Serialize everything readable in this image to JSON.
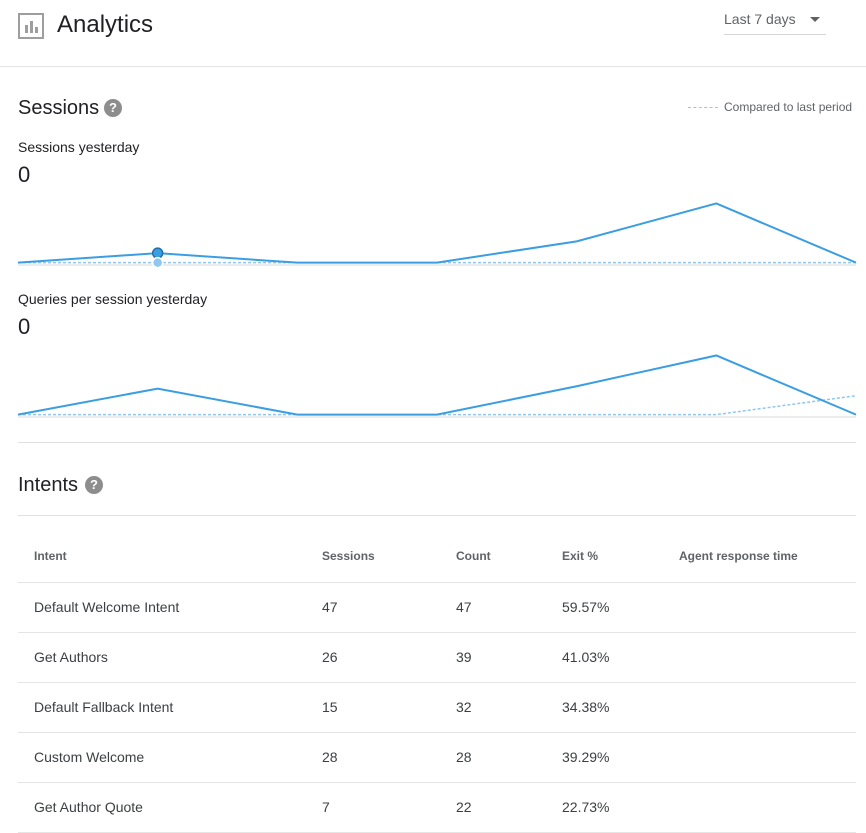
{
  "header": {
    "title": "Analytics",
    "icon": "bar-chart-icon",
    "range": {
      "selected": "Last 7 days"
    }
  },
  "sessions": {
    "title": "Sessions",
    "legend": "Compared to last period",
    "sessions_yesterday": {
      "label": "Sessions yesterday",
      "value": "0",
      "current": [
        1,
        5,
        1,
        1,
        10,
        26,
        1
      ],
      "previous": [
        1,
        1,
        1,
        1,
        1,
        1,
        1
      ]
    },
    "queries_per_session": {
      "label": "Queries per session yesterday",
      "value": "0",
      "current": [
        1,
        12,
        1,
        1,
        13,
        26,
        1
      ],
      "previous": [
        1,
        1,
        1,
        1,
        1,
        1,
        9
      ]
    },
    "colors": {
      "current": "#3a9ee0",
      "previous": "#8fc7ef"
    }
  },
  "intents": {
    "title": "Intents",
    "columns": [
      "Intent",
      "Sessions",
      "Count",
      "Exit %",
      "Agent response time"
    ],
    "rows": [
      {
        "intent": "Default Welcome Intent",
        "sessions": "47",
        "count": "47",
        "exit": "59.57%",
        "response": ""
      },
      {
        "intent": "Get Authors",
        "sessions": "26",
        "count": "39",
        "exit": "41.03%",
        "response": ""
      },
      {
        "intent": "Default Fallback Intent",
        "sessions": "15",
        "count": "32",
        "exit": "34.38%",
        "response": ""
      },
      {
        "intent": "Custom Welcome",
        "sessions": "28",
        "count": "28",
        "exit": "39.29%",
        "response": ""
      },
      {
        "intent": "Get Author Quote",
        "sessions": "7",
        "count": "22",
        "exit": "22.73%",
        "response": ""
      }
    ]
  }
}
